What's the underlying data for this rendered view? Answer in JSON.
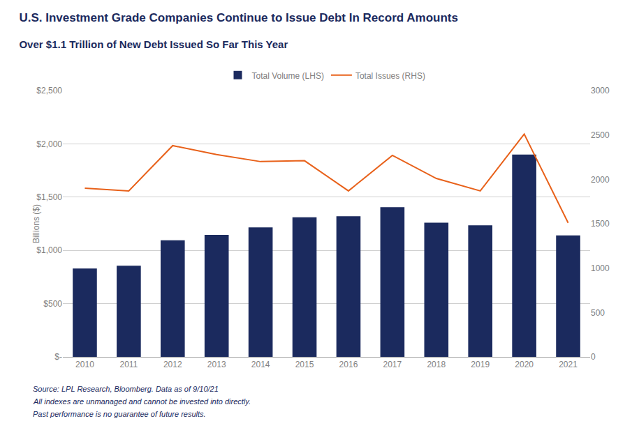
{
  "chart_data": {
    "type": "bar",
    "title": "U.S. Investment Grade Companies Continue to Issue Debt In Record Amounts",
    "subtitle": "Over $1.1 Trillion of New Debt Issued So Far This Year",
    "annotations": [
      "Source: LPL Research, Bloomberg. Data as of 9/10/21",
      "All indexes are unmanaged and cannot be invested into directly.",
      "Past performance is no guarantee of future results."
    ],
    "categories": [
      "2010",
      "2011",
      "2012",
      "2013",
      "2014",
      "2015",
      "2016",
      "2017",
      "2018",
      "2019",
      "2020",
      "2021"
    ],
    "ylabel": "Billions ($)",
    "series": [
      {
        "name": "Total Volume (LHS)",
        "type": "bar",
        "color": "#1b2a5e",
        "values": [
          830,
          855,
          1095,
          1145,
          1215,
          1310,
          1320,
          1405,
          1260,
          1235,
          1900,
          1140
        ]
      },
      {
        "name": "Total Issues (RHS)",
        "type": "line",
        "color": "#e8611a",
        "axis": "y2",
        "values": [
          1900,
          1870,
          2380,
          2280,
          2200,
          2210,
          1870,
          2270,
          2010,
          1870,
          2510,
          1510
        ]
      }
    ],
    "ylim": [
      0,
      2500
    ],
    "yticks": [
      {
        "value": 0,
        "label": "$-"
      },
      {
        "value": 500,
        "label": "$500"
      },
      {
        "value": 1000,
        "label": "$1,000"
      },
      {
        "value": 1500,
        "label": "$1,500"
      },
      {
        "value": 2000,
        "label": "$2,000"
      },
      {
        "value": 2500,
        "label": "$2,500"
      }
    ],
    "y2lim": [
      0,
      3000
    ],
    "y2ticks": [
      0,
      500,
      1000,
      1500,
      2000,
      2500,
      3000
    ],
    "grid": true,
    "legend": "top"
  }
}
